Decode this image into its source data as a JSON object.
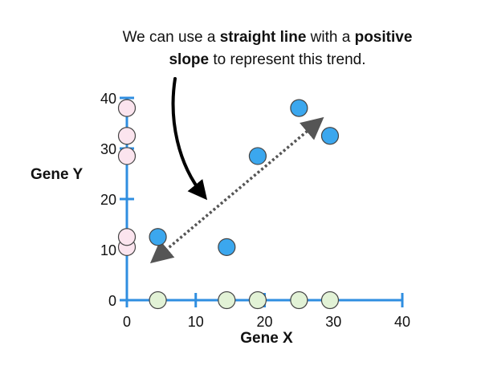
{
  "chart_data": {
    "type": "scatter",
    "title": "",
    "xlabel": "Gene X",
    "ylabel": "Gene Y",
    "xlim": [
      0,
      40
    ],
    "ylim": [
      0,
      40
    ],
    "x_ticks": [
      0,
      10,
      20,
      30,
      40
    ],
    "y_ticks": [
      0,
      10,
      20,
      30,
      40
    ],
    "x_tick_labels": [
      "0",
      "10",
      "20",
      "30",
      "40"
    ],
    "y_tick_labels": [
      "0",
      "10",
      "20",
      "30",
      "40"
    ],
    "grid": false,
    "series": [
      {
        "role": "paired-samples",
        "color": "#3ba7ee",
        "points": [
          {
            "x": 4.5,
            "y": 12.5
          },
          {
            "x": 14.5,
            "y": 10.5
          },
          {
            "x": 19,
            "y": 28.5
          },
          {
            "x": 25,
            "y": 38
          },
          {
            "x": 29.5,
            "y": 32.5
          }
        ]
      },
      {
        "role": "gene-x-projection",
        "color": "#e2f2d6",
        "points": [
          {
            "x": 4.5,
            "y": 0
          },
          {
            "x": 14.5,
            "y": 0
          },
          {
            "x": 19,
            "y": 0
          },
          {
            "x": 25,
            "y": 0
          },
          {
            "x": 29.5,
            "y": 0
          }
        ]
      },
      {
        "role": "gene-y-projection",
        "color": "#fbe4ee",
        "points": [
          {
            "x": 0,
            "y": 10.5
          },
          {
            "x": 0,
            "y": 12.5
          },
          {
            "x": 0,
            "y": 28.5
          },
          {
            "x": 0,
            "y": 32.5
          },
          {
            "x": 0,
            "y": 38
          }
        ]
      }
    ],
    "trend_line": {
      "from": {
        "x": 4,
        "y": 8
      },
      "to": {
        "x": 28,
        "y": 35.5
      },
      "style": "dotted",
      "arrows": "both"
    },
    "annotation": {
      "line1": [
        {
          "text": "We can use a ",
          "bold": false
        },
        {
          "text": "straight line",
          "bold": true
        },
        {
          "text": " with a ",
          "bold": false
        },
        {
          "text": "positive",
          "bold": true
        }
      ],
      "line2": [
        {
          "text": "slope",
          "bold": true
        },
        {
          "text": " to represent this trend.",
          "bold": false
        }
      ]
    },
    "colors": {
      "axis": "#2f8ee0",
      "outline": "#444444",
      "text": "#111111",
      "pointer": "#000000"
    }
  }
}
